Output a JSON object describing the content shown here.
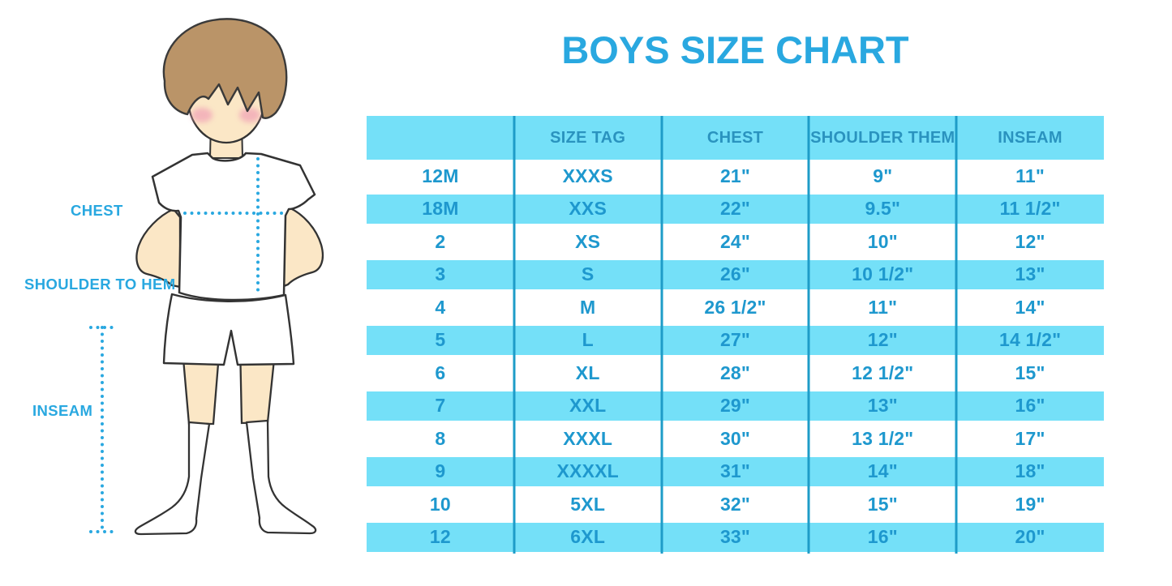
{
  "title": "BOYS SIZE CHART",
  "figure_labels": {
    "chest": "CHEST",
    "shoulder_to_hem": "SHOULDER TO HEM",
    "inseam": "INSEAM"
  },
  "colors": {
    "accent_blue": "#29A8E0",
    "band_blue": "#74E0F8",
    "divider_blue": "#1E9CC8",
    "header_text_blue": "#2A93BF",
    "cell_text_blue": "#1E98CE",
    "skin": "#FBE7C6",
    "hair_brown": "#BA9468",
    "blush_pink": "#F2A9B8",
    "outline_dark": "#333333"
  },
  "chart_data": {
    "type": "table",
    "title": "BOYS SIZE CHART",
    "columns": [
      "",
      "SIZE TAG",
      "CHEST",
      "SHOULDER THEM",
      "INSEAM"
    ],
    "rows": [
      [
        "12M",
        "XXXS",
        "21\"",
        "9\"",
        "11\""
      ],
      [
        "18M",
        "XXS",
        "22\"",
        "9.5\"",
        "11 1/2\""
      ],
      [
        "2",
        "XS",
        "24\"",
        "10\"",
        "12\""
      ],
      [
        "3",
        "S",
        "26\"",
        "10 1/2\"",
        "13\""
      ],
      [
        "4",
        "M",
        "26 1/2\"",
        "11\"",
        "14\""
      ],
      [
        "5",
        "L",
        "27\"",
        "12\"",
        "14 1/2\""
      ],
      [
        "6",
        "XL",
        "28\"",
        "12 1/2\"",
        "15\""
      ],
      [
        "7",
        "XXL",
        "29\"",
        "13\"",
        "16\""
      ],
      [
        "8",
        "XXXL",
        "30\"",
        "13 1/2\"",
        "17\""
      ],
      [
        "9",
        "XXXXL",
        "31\"",
        "14\"",
        "18\""
      ],
      [
        "10",
        "5XL",
        "32\"",
        "15\"",
        "19\""
      ],
      [
        "12",
        "6XL",
        "33\"",
        "16\"",
        "20\""
      ]
    ]
  }
}
